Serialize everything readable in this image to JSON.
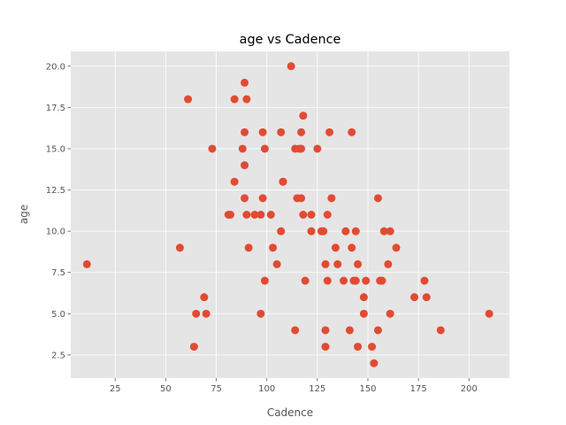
{
  "chart_data": {
    "type": "scatter",
    "title": "age vs Cadence",
    "xlabel": "Cadence",
    "ylabel": "age",
    "xlim": [
      3,
      220
    ],
    "ylim": [
      1.1,
      20.9
    ],
    "xticks": [
      25,
      50,
      75,
      100,
      125,
      150,
      175,
      200
    ],
    "yticks": [
      2.5,
      5.0,
      7.5,
      10.0,
      12.5,
      15.0,
      17.5,
      20.0
    ],
    "xtick_labels": [
      "25",
      "50",
      "75",
      "100",
      "125",
      "150",
      "175",
      "200"
    ],
    "ytick_labels": [
      "2.5",
      "5.0",
      "7.5",
      "10.0",
      "12.5",
      "15.0",
      "17.5",
      "20.0"
    ],
    "grid": true,
    "legend": "none",
    "background_color": "#e5e5e5",
    "point_color": "#e24a33",
    "points": [
      [
        11,
        8
      ],
      [
        57,
        9
      ],
      [
        61,
        18
      ],
      [
        64,
        3
      ],
      [
        65,
        5
      ],
      [
        69,
        6
      ],
      [
        70,
        5
      ],
      [
        73,
        15
      ],
      [
        81,
        11
      ],
      [
        82,
        11
      ],
      [
        84,
        18
      ],
      [
        84,
        13
      ],
      [
        88,
        15
      ],
      [
        89,
        19
      ],
      [
        89,
        16
      ],
      [
        89,
        14
      ],
      [
        89,
        12
      ],
      [
        90,
        11
      ],
      [
        90,
        18
      ],
      [
        91,
        9
      ],
      [
        94,
        11
      ],
      [
        97,
        11
      ],
      [
        97,
        5
      ],
      [
        98,
        12
      ],
      [
        98,
        16
      ],
      [
        99,
        7
      ],
      [
        99,
        15
      ],
      [
        102,
        11
      ],
      [
        103,
        9
      ],
      [
        105,
        8
      ],
      [
        107,
        16
      ],
      [
        107,
        10
      ],
      [
        108,
        13
      ],
      [
        108,
        13
      ],
      [
        112,
        20
      ],
      [
        114,
        15
      ],
      [
        114,
        4
      ],
      [
        115,
        12
      ],
      [
        116,
        15
      ],
      [
        117,
        12
      ],
      [
        117,
        16
      ],
      [
        117,
        15
      ],
      [
        118,
        11
      ],
      [
        118,
        17
      ],
      [
        119,
        7
      ],
      [
        122,
        11
      ],
      [
        122,
        10
      ],
      [
        125,
        15
      ],
      [
        127,
        10
      ],
      [
        128,
        10
      ],
      [
        129,
        8
      ],
      [
        129,
        4
      ],
      [
        129,
        3
      ],
      [
        130,
        7
      ],
      [
        130,
        11
      ],
      [
        131,
        16
      ],
      [
        132,
        12
      ],
      [
        134,
        9
      ],
      [
        135,
        8
      ],
      [
        138,
        7
      ],
      [
        139,
        10
      ],
      [
        141,
        4
      ],
      [
        142,
        9
      ],
      [
        142,
        16
      ],
      [
        143,
        7
      ],
      [
        144,
        10
      ],
      [
        144,
        7
      ],
      [
        145,
        8
      ],
      [
        145,
        3
      ],
      [
        148,
        6
      ],
      [
        148,
        5
      ],
      [
        149,
        7
      ],
      [
        152,
        3
      ],
      [
        153,
        2
      ],
      [
        155,
        12
      ],
      [
        155,
        4
      ],
      [
        156,
        7
      ],
      [
        157,
        7
      ],
      [
        158,
        10
      ],
      [
        160,
        8
      ],
      [
        161,
        5
      ],
      [
        161,
        10
      ],
      [
        164,
        9
      ],
      [
        173,
        6
      ],
      [
        178,
        7
      ],
      [
        179,
        6
      ],
      [
        186,
        4
      ],
      [
        210,
        5
      ]
    ]
  }
}
